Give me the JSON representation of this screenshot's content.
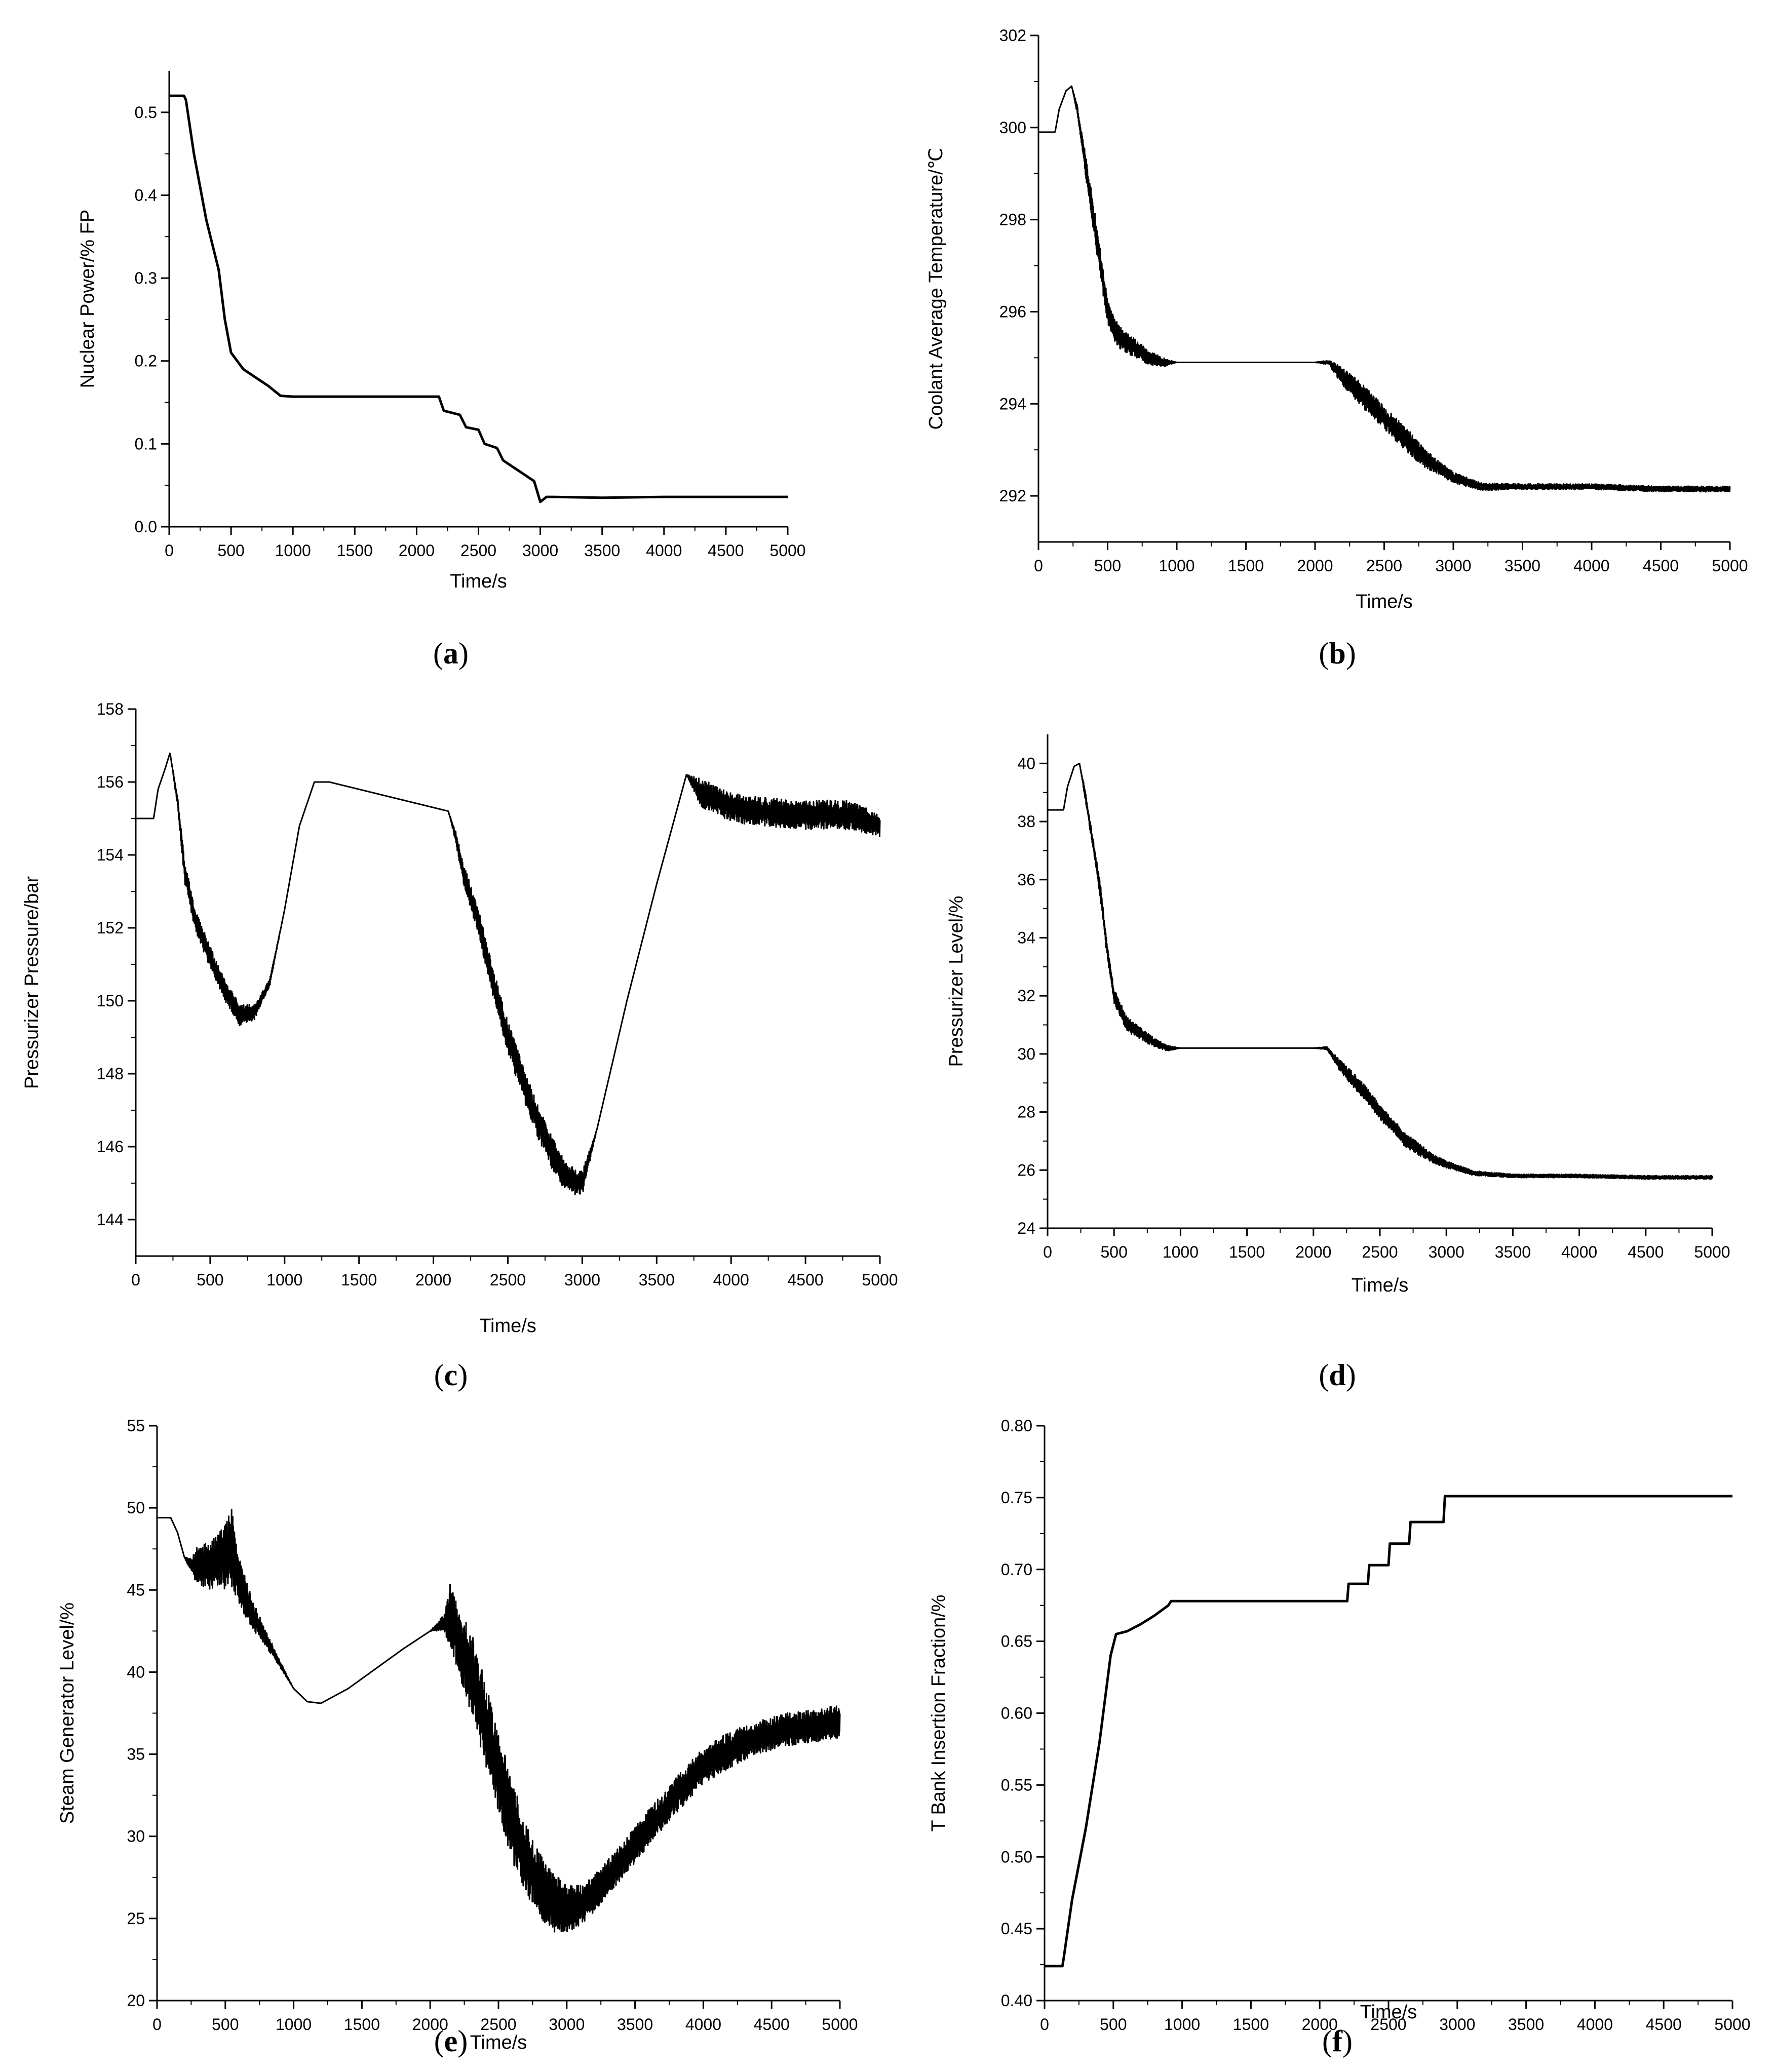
{
  "figure": {
    "colors": {
      "line": "#000000",
      "axis": "#000000",
      "background": "#ffffff"
    }
  },
  "chart_data": [
    {
      "type": "line",
      "panel": "a",
      "caption": "(a)",
      "title": "",
      "xlabel": "Time/s",
      "ylabel": "Nuclear Power/% FP",
      "xlim": [
        0,
        5000
      ],
      "ylim": [
        0.0,
        0.55
      ],
      "xticks": [
        0,
        500,
        1000,
        1500,
        2000,
        2500,
        3000,
        3500,
        4000,
        4500,
        5000
      ],
      "yticks": [
        0.0,
        0.1,
        0.2,
        0.3,
        0.4,
        0.5
      ],
      "ytick_labels": [
        "0.0",
        "0.1",
        "0.2",
        "0.3",
        "0.4",
        "0.5"
      ],
      "grid": false,
      "series": [
        {
          "name": "Nuclear Power",
          "x": [
            0,
            120,
            135,
            200,
            300,
            400,
            450,
            500,
            550,
            600,
            700,
            800,
            900,
            1000,
            1500,
            2000,
            2180,
            2220,
            2350,
            2400,
            2500,
            2550,
            2650,
            2700,
            2800,
            2850,
            2950,
            3000,
            3050,
            3100,
            3500,
            4000,
            4500,
            5000
          ],
          "y": [
            0.52,
            0.52,
            0.515,
            0.45,
            0.37,
            0.31,
            0.25,
            0.21,
            0.2,
            0.19,
            0.18,
            0.17,
            0.158,
            0.157,
            0.157,
            0.157,
            0.157,
            0.14,
            0.135,
            0.12,
            0.117,
            0.1,
            0.095,
            0.08,
            0.07,
            0.065,
            0.055,
            0.03,
            0.036,
            0.036,
            0.035,
            0.036,
            0.036,
            0.036
          ]
        }
      ]
    },
    {
      "type": "line",
      "panel": "b",
      "caption": "(b)",
      "title": "",
      "xlabel": "Time/s",
      "ylabel": "Coolant Average Temperature/℃",
      "xlim": [
        0,
        5000
      ],
      "ylim": [
        291,
        302
      ],
      "xticks": [
        0,
        500,
        1000,
        1500,
        2000,
        2500,
        3000,
        3500,
        4000,
        4500,
        5000
      ],
      "yticks": [
        292,
        294,
        296,
        298,
        300,
        302
      ],
      "ytick_labels": [
        "292",
        "294",
        "296",
        "298",
        "300",
        "302"
      ],
      "grid": false,
      "series": [
        {
          "name": "Coolant Average Temperature",
          "x": [
            0,
            120,
            150,
            200,
            240,
            280,
            350,
            400,
            450,
            500,
            550,
            600,
            700,
            800,
            900,
            1000,
            1500,
            2000,
            2100,
            2200,
            2300,
            2400,
            2500,
            2600,
            2700,
            2800,
            2900,
            3000,
            3200,
            3500,
            4000,
            4500,
            5000
          ],
          "y": [
            299.9,
            299.9,
            300.4,
            300.8,
            300.9,
            300.4,
            299.0,
            298.0,
            297.0,
            296.0,
            295.6,
            295.4,
            295.2,
            295.0,
            294.9,
            294.9,
            294.9,
            294.9,
            294.9,
            294.6,
            294.3,
            294.0,
            293.7,
            293.4,
            293.1,
            292.8,
            292.6,
            292.4,
            292.2,
            292.2,
            292.2,
            292.15,
            292.15
          ],
          "noise": [
            0,
            0,
            0,
            0,
            0,
            0.1,
            0.25,
            0.3,
            0.3,
            0.25,
            0.25,
            0.25,
            0.2,
            0.15,
            0.1,
            0,
            0,
            0,
            0.05,
            0.2,
            0.25,
            0.25,
            0.25,
            0.25,
            0.25,
            0.2,
            0.15,
            0.12,
            0.08,
            0.06,
            0.06,
            0.06,
            0.06
          ]
        }
      ]
    },
    {
      "type": "line",
      "panel": "c",
      "caption": "(c)",
      "title": "",
      "xlabel": "Time/s",
      "ylabel": "Pressurizer Pressure/bar",
      "xlim": [
        0,
        5000
      ],
      "ylim": [
        143,
        158
      ],
      "xticks": [
        0,
        500,
        1000,
        1500,
        2000,
        2500,
        3000,
        3500,
        4000,
        4500,
        5000
      ],
      "yticks": [
        144,
        146,
        148,
        150,
        152,
        154,
        156,
        158
      ],
      "ytick_labels": [
        "144",
        "146",
        "148",
        "150",
        "152",
        "154",
        "156",
        "158"
      ],
      "grid": false,
      "series": [
        {
          "name": "Pressurizer Pressure",
          "x": [
            0,
            120,
            150,
            200,
            230,
            280,
            330,
            400,
            500,
            600,
            700,
            800,
            900,
            1000,
            1100,
            1200,
            1300,
            1500,
            1800,
            2100,
            2150,
            2200,
            2300,
            2400,
            2500,
            2600,
            2700,
            2800,
            2900,
            3000,
            3100,
            3300,
            3500,
            3700,
            3800,
            4000,
            4200,
            4400,
            4600,
            4800,
            5000
          ],
          "y": [
            155.0,
            155.0,
            155.8,
            156.4,
            156.8,
            155.5,
            153.5,
            152.2,
            151.2,
            150.3,
            149.6,
            149.7,
            150.5,
            152.5,
            154.8,
            156.0,
            156.0,
            155.8,
            155.5,
            155.2,
            154.5,
            153.5,
            152.2,
            150.5,
            149.0,
            147.8,
            146.7,
            145.8,
            145.1,
            145.0,
            146.5,
            150.0,
            153.2,
            156.2,
            155.7,
            155.3,
            155.2,
            155.1,
            155.1,
            155.1,
            154.8
          ],
          "noise": [
            0,
            0,
            0,
            0,
            0,
            0.15,
            0.3,
            0.3,
            0.3,
            0.3,
            0.3,
            0.2,
            0.1,
            0,
            0,
            0,
            0,
            0,
            0,
            0,
            0.15,
            0.3,
            0.35,
            0.4,
            0.45,
            0.45,
            0.45,
            0.45,
            0.4,
            0.35,
            0,
            0,
            0,
            0,
            0.4,
            0.4,
            0.4,
            0.4,
            0.4,
            0.4,
            0.3
          ]
        }
      ]
    },
    {
      "type": "line",
      "panel": "d",
      "caption": "(d)",
      "title": "",
      "xlabel": "Time/s",
      "ylabel": "Pressurizer Level/%",
      "xlim": [
        0,
        5000
      ],
      "ylim": [
        24,
        41
      ],
      "xticks": [
        0,
        500,
        1000,
        1500,
        2000,
        2500,
        3000,
        3500,
        4000,
        4500,
        5000
      ],
      "yticks": [
        24,
        26,
        28,
        30,
        32,
        34,
        36,
        38,
        40
      ],
      "ytick_labels": [
        "24",
        "26",
        "28",
        "30",
        "32",
        "34",
        "36",
        "38",
        "40"
      ],
      "grid": false,
      "series": [
        {
          "name": "Pressurizer Level",
          "x": [
            0,
            120,
            150,
            200,
            240,
            280,
            350,
            400,
            450,
            500,
            550,
            600,
            700,
            800,
            900,
            1000,
            1500,
            2000,
            2100,
            2200,
            2300,
            2400,
            2500,
            2600,
            2700,
            2800,
            2900,
            3000,
            3200,
            3500,
            4000,
            4500,
            5000
          ],
          "y": [
            38.4,
            38.4,
            39.2,
            39.9,
            40.0,
            39.0,
            37.0,
            35.5,
            33.5,
            32.0,
            31.5,
            31.0,
            30.7,
            30.4,
            30.2,
            30.2,
            30.2,
            30.2,
            30.2,
            29.6,
            29.1,
            28.6,
            28.0,
            27.5,
            27.0,
            26.7,
            26.4,
            26.2,
            25.9,
            25.8,
            25.8,
            25.75,
            25.75
          ],
          "noise": [
            0,
            0,
            0,
            0,
            0,
            0.15,
            0.2,
            0.25,
            0.25,
            0.25,
            0.25,
            0.25,
            0.2,
            0.15,
            0.1,
            0,
            0,
            0,
            0.05,
            0.2,
            0.25,
            0.25,
            0.25,
            0.25,
            0.25,
            0.2,
            0.15,
            0.12,
            0.08,
            0.06,
            0.06,
            0.06,
            0.06
          ]
        }
      ]
    },
    {
      "type": "line",
      "panel": "e",
      "caption": "(e)",
      "title": "",
      "xlabel": "Time/s",
      "ylabel": "Steam Generator Level/%",
      "xlim": [
        0,
        5000
      ],
      "ylim": [
        20,
        55
      ],
      "xticks": [
        0,
        500,
        1000,
        1500,
        2000,
        2500,
        3000,
        3500,
        4000,
        4500,
        5000
      ],
      "yticks": [
        20,
        25,
        30,
        35,
        40,
        45,
        50,
        55
      ],
      "ytick_labels": [
        "20",
        "25",
        "30",
        "35",
        "40",
        "45",
        "50",
        "55"
      ],
      "grid": false,
      "series": [
        {
          "name": "Steam Generator Level",
          "x": [
            0,
            100,
            150,
            200,
            250,
            300,
            400,
            500,
            550,
            600,
            700,
            800,
            900,
            1000,
            1100,
            1200,
            1400,
            1600,
            1800,
            2000,
            2100,
            2150,
            2200,
            2300,
            2400,
            2500,
            2600,
            2700,
            2800,
            2900,
            3000,
            3100,
            3200,
            3400,
            3600,
            3800,
            4000,
            4200,
            4400,
            4600,
            4800,
            5000
          ],
          "y": [
            49.4,
            49.4,
            48.5,
            47.0,
            46.5,
            46.5,
            46.5,
            47.0,
            47.5,
            45.5,
            43.5,
            42.0,
            40.5,
            39.0,
            38.2,
            38.1,
            39.0,
            40.2,
            41.4,
            42.5,
            43.0,
            43.5,
            42.0,
            40.0,
            37.0,
            34.0,
            31.0,
            28.5,
            27.0,
            26.0,
            25.5,
            25.8,
            26.5,
            28.5,
            30.5,
            32.5,
            34.3,
            35.3,
            36.0,
            36.5,
            36.7,
            37.0
          ],
          "noise": [
            0,
            0,
            0,
            0,
            0.5,
            1.2,
            1.5,
            2.0,
            2.5,
            1.5,
            0.9,
            0.5,
            0.2,
            0,
            0,
            0,
            0,
            0,
            0,
            0,
            0.5,
            2.0,
            2.0,
            2.5,
            2.5,
            2.5,
            2.5,
            2.2,
            2.0,
            1.8,
            1.5,
            1.2,
            1.1,
            1.1,
            1.1,
            1.1,
            1.1,
            1.1,
            1.0,
            1.0,
            1.0,
            1.0
          ]
        }
      ]
    },
    {
      "type": "line",
      "panel": "f",
      "caption": "(f)",
      "title": "",
      "xlabel": "Time/s",
      "ylabel": "T Bank Insertion Fraction/%",
      "xlim": [
        0,
        5000
      ],
      "ylim": [
        0.4,
        0.8
      ],
      "xticks": [
        0,
        500,
        1000,
        1500,
        2000,
        2500,
        3000,
        3500,
        4000,
        4500,
        5000
      ],
      "yticks": [
        0.4,
        0.45,
        0.5,
        0.55,
        0.6,
        0.65,
        0.7,
        0.75,
        0.8
      ],
      "ytick_labels": [
        "0.40",
        "0.45",
        "0.50",
        "0.55",
        "0.60",
        "0.65",
        "0.70",
        "0.75",
        "0.80"
      ],
      "grid": false,
      "series": [
        {
          "name": "T Bank Insertion Fraction",
          "x": [
            0,
            130,
            140,
            200,
            300,
            400,
            480,
            520,
            600,
            700,
            800,
            900,
            920,
            1500,
            2000,
            2200,
            2210,
            2350,
            2360,
            2500,
            2510,
            2650,
            2660,
            2900,
            2910,
            3500,
            4000,
            4500,
            5000
          ],
          "y": [
            0.424,
            0.424,
            0.43,
            0.47,
            0.52,
            0.58,
            0.64,
            0.655,
            0.657,
            0.662,
            0.668,
            0.675,
            0.678,
            0.678,
            0.678,
            0.678,
            0.69,
            0.69,
            0.703,
            0.703,
            0.718,
            0.718,
            0.733,
            0.733,
            0.751,
            0.751,
            0.751,
            0.751,
            0.751
          ]
        }
      ]
    }
  ]
}
